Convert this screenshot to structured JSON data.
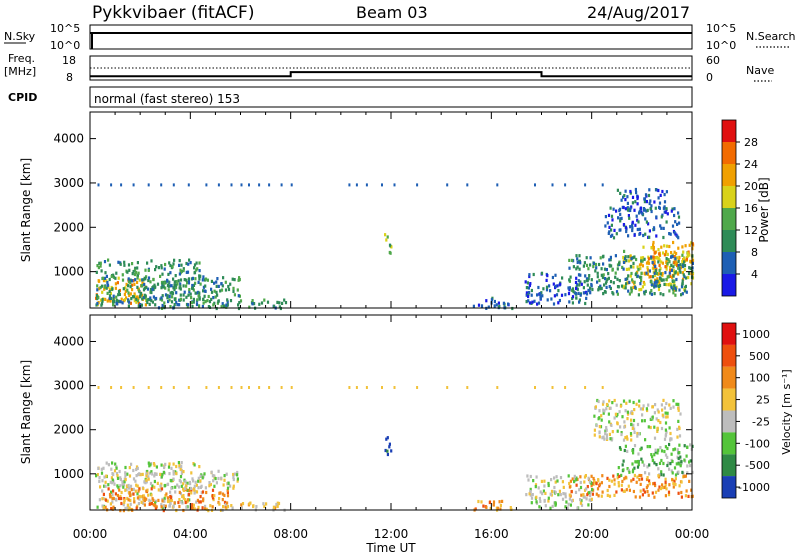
{
  "header": {
    "title": "Pykkvibaer (fitACF)",
    "beam": "Beam 03",
    "date": "24/Aug/2017"
  },
  "nsky_panel": {
    "left_label": "N.Sky",
    "right_label": "N.Search",
    "left_ticks": [
      "10^5",
      "10^0"
    ],
    "right_ticks": [
      "10^5",
      "10^0"
    ]
  },
  "freq_panel": {
    "left_label_1": "Freq.",
    "left_label_2": "[MHz]",
    "right_label": "Nave",
    "left_ticks": [
      "18",
      "8"
    ],
    "right_ticks": [
      "60",
      "0"
    ],
    "freq_mhz": [
      [
        0,
        9.6
      ],
      [
        8,
        9.6
      ],
      [
        8,
        11.3
      ],
      [
        18,
        11.3
      ],
      [
        18,
        9.6
      ],
      [
        24,
        9.6
      ]
    ],
    "nave": [
      [
        0,
        30
      ],
      [
        24,
        30
      ]
    ]
  },
  "cpid_panel": {
    "label": "CPID",
    "text": "normal (fast stereo) 153"
  },
  "x_axis": {
    "title": "Time UT",
    "ticks": [
      "00:00",
      "04:00",
      "08:00",
      "12:00",
      "16:00",
      "20:00",
      "00:00"
    ]
  },
  "chart_data": [
    {
      "type": "heatmap",
      "name": "power",
      "xlabel": "Time UT",
      "ylabel": "Slant Range [km]",
      "xlim": [
        0,
        24
      ],
      "ylim": [
        180,
        4600
      ],
      "yticks": [
        "1000",
        "2000",
        "3000",
        "4000"
      ],
      "colorbar": {
        "label": "Power [dB]",
        "ticks": [
          "4",
          "8",
          "12",
          "16",
          "20",
          "24",
          "28"
        ],
        "colors": [
          "#1a1ae6",
          "#1e5fb4",
          "#2e8b57",
          "#4fa84a",
          "#d9d21a",
          "#f0a000",
          "#f26b00",
          "#e01010"
        ]
      },
      "regions": [
        {
          "t0": 0.2,
          "t1": 2.2,
          "r0": 250,
          "r1": 900,
          "level": 5
        },
        {
          "t0": 0.2,
          "t1": 4.5,
          "r0": 250,
          "r1": 1300,
          "level": 2
        },
        {
          "t0": 2.0,
          "t1": 6.0,
          "r0": 200,
          "r1": 900,
          "level": 2
        },
        {
          "t0": 5.0,
          "t1": 7.8,
          "r0": 200,
          "r1": 400,
          "level": 2
        },
        {
          "t0": 21.2,
          "t1": 24,
          "r0": 600,
          "r1": 1500,
          "level": 4
        },
        {
          "t0": 22.0,
          "t1": 24,
          "r0": 900,
          "r1": 1700,
          "level": 5
        },
        {
          "t0": 19.0,
          "t1": 24,
          "r0": 500,
          "r1": 1400,
          "level": 2
        },
        {
          "t0": 20.5,
          "t1": 23.5,
          "r0": 1800,
          "r1": 2500,
          "level": 1
        },
        {
          "t0": 21.0,
          "t1": 23.0,
          "r0": 2400,
          "r1": 2900,
          "level": 1
        },
        {
          "t0": 17.3,
          "t1": 20.0,
          "r0": 300,
          "r1": 1000,
          "level": 1
        },
        {
          "t0": 11.7,
          "t1": 12.0,
          "r0": 1400,
          "r1": 1900,
          "level": 3
        },
        {
          "t0": 15.2,
          "t1": 16.8,
          "r0": 200,
          "r1": 450,
          "level": 1
        }
      ],
      "echo_band_km": 2990,
      "echo_band_times": [
        0.3,
        0.8,
        1.2,
        1.7,
        2.3,
        2.8,
        3.3,
        3.9,
        4.6,
        5.1,
        5.6,
        6.0,
        6.3,
        6.7,
        7.1,
        7.6,
        8.0,
        10.3,
        10.6,
        11.0,
        11.6,
        12.1,
        13.0,
        14.2,
        15.0,
        16.2,
        17.7,
        18.4,
        18.9,
        19.7,
        20.4
      ]
    },
    {
      "type": "heatmap",
      "name": "velocity",
      "xlabel": "Time UT",
      "ylabel": "Slant Range [km]",
      "xlim": [
        0,
        24
      ],
      "ylim": [
        180,
        4600
      ],
      "yticks": [
        "1000",
        "2000",
        "3000",
        "4000"
      ],
      "colorbar": {
        "label": "Velocity [m s⁻¹]",
        "ticks": [
          "1000",
          "500",
          "100",
          "25",
          "-25",
          "-100",
          "-500",
          "-1000"
        ],
        "colors": [
          "#1a3fb5",
          "#2f8a45",
          "#54c43a",
          "#bdbdbd",
          "#f2c23a",
          "#f08a1a",
          "#ee4f0e",
          "#e01010"
        ]
      },
      "regions": [
        {
          "t0": 0.2,
          "t1": 4.5,
          "r0": 250,
          "r1": 1300,
          "level": 3
        },
        {
          "t0": 0.5,
          "t1": 5.5,
          "r0": 200,
          "r1": 700,
          "level": 5
        },
        {
          "t0": 2.0,
          "t1": 6.0,
          "r0": 700,
          "r1": 1100,
          "level": 3
        },
        {
          "t0": 4.5,
          "t1": 7.8,
          "r0": 200,
          "r1": 400,
          "level": 4
        },
        {
          "t0": 21.0,
          "t1": 24,
          "r0": 1000,
          "r1": 1700,
          "level": 2
        },
        {
          "t0": 19.0,
          "t1": 24,
          "r0": 500,
          "r1": 1000,
          "level": 5
        },
        {
          "t0": 20.0,
          "t1": 23.5,
          "r0": 1800,
          "r1": 2700,
          "level": 3
        },
        {
          "t0": 17.3,
          "t1": 20.0,
          "r0": 250,
          "r1": 1000,
          "level": 3
        },
        {
          "t0": 11.7,
          "t1": 12.0,
          "r0": 1400,
          "r1": 1900,
          "level": 0
        },
        {
          "t0": 15.2,
          "t1": 16.8,
          "r0": 200,
          "r1": 450,
          "level": 5
        }
      ],
      "echo_band_km": 2990,
      "echo_band_times": [
        0.3,
        0.8,
        1.2,
        1.7,
        2.3,
        2.8,
        3.3,
        3.9,
        4.6,
        5.1,
        5.6,
        6.0,
        6.3,
        6.7,
        7.1,
        7.6,
        8.0,
        10.3,
        10.6,
        11.0,
        11.6,
        12.1,
        13.0,
        14.2,
        15.0,
        16.2,
        17.7,
        18.4,
        18.9,
        19.7,
        20.4
      ]
    }
  ]
}
